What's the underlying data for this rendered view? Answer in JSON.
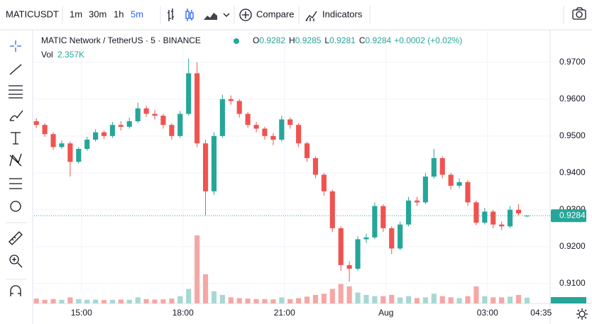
{
  "toolbar": {
    "symbol": "MATICUSDT",
    "intervals": [
      "1m",
      "30m",
      "1h",
      "5m"
    ],
    "compare": "Compare",
    "indicators": "Indicators"
  },
  "chart_data": {
    "type": "candlestick",
    "title": "MATIC Network / TetherUS · 5 · BINANCE",
    "ohlc_legend": [
      {
        "label": "O",
        "value": 0.9282
      },
      {
        "label": "H",
        "value": 0.9285
      },
      {
        "label": "L",
        "value": 0.9281
      },
      {
        "label": "C",
        "value": 0.9284
      }
    ],
    "change": "+0.0002 (+0.02%)",
    "volume_title": "Vol",
    "volume_value": "2.357K",
    "up_color": "#26a69a",
    "down_color": "#ef5350",
    "volume_up_color": "#a7d8d3",
    "volume_down_color": "#f5a7a5",
    "x": [
      820,
      835,
      850,
      865,
      880,
      895,
      910,
      925,
      940,
      955,
      970,
      985,
      1000,
      1015,
      1030,
      1045,
      1060,
      1075,
      1090,
      1105,
      1120,
      1135,
      1150,
      1165,
      1180,
      1195,
      1210,
      1225,
      1240,
      1255,
      1270,
      1285,
      1300,
      1315,
      1330,
      1345,
      1360,
      1375,
      1390,
      1405,
      1420,
      1435,
      1450,
      1465,
      1480,
      1495,
      1510,
      1525,
      1540,
      1555,
      1570,
      1585,
      1600,
      1615,
      1630,
      1645,
      1660,
      1675,
      1690
    ],
    "open": [
      0.954,
      0.953,
      0.9505,
      0.947,
      0.948,
      0.943,
      0.9465,
      0.949,
      0.951,
      0.95,
      0.953,
      0.9525,
      0.954,
      0.9575,
      0.956,
      0.9555,
      0.953,
      0.95,
      0.956,
      0.967,
      0.948,
      0.935,
      0.95,
      0.96,
      0.9595,
      0.956,
      0.953,
      0.952,
      0.95,
      0.949,
      0.9545,
      0.953,
      0.948,
      0.944,
      0.9395,
      0.935,
      0.925,
      0.915,
      0.914,
      0.922,
      0.9225,
      0.931,
      0.925,
      0.9195,
      0.926,
      0.9325,
      0.932,
      0.939,
      0.944,
      0.9395,
      0.9365,
      0.9375,
      0.932,
      0.9265,
      0.9295,
      0.926,
      0.9255,
      0.93,
      0.9282
    ],
    "high": [
      0.9548,
      0.9535,
      0.951,
      0.9488,
      0.9485,
      0.947,
      0.9498,
      0.9518,
      0.9515,
      0.9538,
      0.954,
      0.955,
      0.959,
      0.9582,
      0.957,
      0.956,
      0.9535,
      0.9568,
      0.971,
      0.97,
      0.949,
      0.951,
      0.9612,
      0.961,
      0.96,
      0.9565,
      0.9538,
      0.9525,
      0.9508,
      0.9555,
      0.955,
      0.9535,
      0.9485,
      0.9445,
      0.94,
      0.9355,
      0.9255,
      0.916,
      0.9228,
      0.9235,
      0.932,
      0.9315,
      0.9255,
      0.9268,
      0.9335,
      0.9335,
      0.94,
      0.9465,
      0.9445,
      0.94,
      0.9385,
      0.938,
      0.9325,
      0.9305,
      0.93,
      0.9268,
      0.931,
      0.9315,
      0.9285
    ],
    "low": [
      0.9522,
      0.9498,
      0.9462,
      0.9465,
      0.939,
      0.9425,
      0.946,
      0.9485,
      0.9492,
      0.9495,
      0.9515,
      0.952,
      0.9535,
      0.9552,
      0.9545,
      0.952,
      0.949,
      0.9495,
      0.9555,
      0.947,
      0.9285,
      0.934,
      0.9495,
      0.9585,
      0.955,
      0.9522,
      0.951,
      0.949,
      0.9475,
      0.9485,
      0.952,
      0.947,
      0.943,
      0.9385,
      0.9338,
      0.924,
      0.9135,
      0.9105,
      0.9135,
      0.921,
      0.922,
      0.924,
      0.918,
      0.919,
      0.9255,
      0.931,
      0.9315,
      0.9385,
      0.9385,
      0.9355,
      0.9358,
      0.931,
      0.9258,
      0.926,
      0.925,
      0.9245,
      0.925,
      0.9285,
      0.9281
    ],
    "close": [
      0.953,
      0.9505,
      0.947,
      0.948,
      0.943,
      0.9465,
      0.949,
      0.951,
      0.95,
      0.953,
      0.9525,
      0.954,
      0.9575,
      0.956,
      0.9555,
      0.953,
      0.95,
      0.956,
      0.967,
      0.948,
      0.935,
      0.95,
      0.96,
      0.9595,
      0.956,
      0.953,
      0.952,
      0.95,
      0.949,
      0.9545,
      0.953,
      0.948,
      0.944,
      0.9395,
      0.935,
      0.925,
      0.915,
      0.914,
      0.922,
      0.9225,
      0.931,
      0.925,
      0.9195,
      0.926,
      0.9325,
      0.932,
      0.939,
      0.944,
      0.9395,
      0.9365,
      0.9375,
      0.932,
      0.9265,
      0.9295,
      0.926,
      0.9255,
      0.93,
      0.929,
      0.9284
    ],
    "volume": [
      2000,
      1500,
      1800,
      1500,
      2500,
      1800,
      1500,
      1600,
      1400,
      1500,
      1600,
      1500,
      2500,
      1800,
      1600,
      1700,
      2000,
      3000,
      6000,
      28000,
      12000,
      5000,
      3500,
      2500,
      2200,
      2000,
      1800,
      1800,
      1700,
      2500,
      1800,
      2200,
      2800,
      3500,
      4000,
      6000,
      8000,
      7000,
      4500,
      3500,
      3000,
      3000,
      3500,
      2500,
      3000,
      2200,
      2500,
      4000,
      3000,
      2500,
      2200,
      3000,
      7000,
      3000,
      2500,
      2500,
      2800,
      3500,
      2357
    ],
    "xlim": [
      816,
      1731
    ],
    "xticks": [
      {
        "value": 900,
        "label": "15:00"
      },
      {
        "value": 1080,
        "label": "18:00"
      },
      {
        "value": 1260,
        "label": "21:00"
      },
      {
        "value": 1440,
        "label": "Aug"
      },
      {
        "value": 1620,
        "label": "03:00"
      },
      {
        "value": 1715,
        "label": "04:35"
      }
    ],
    "ylim": [
      0.9046,
      0.9788
    ],
    "yticks": [
      {
        "value": 0.97,
        "label": "0.9700"
      },
      {
        "value": 0.96,
        "label": "0.9600"
      },
      {
        "value": 0.95,
        "label": "0.9500"
      },
      {
        "value": 0.94,
        "label": "0.9400"
      },
      {
        "value": 0.93,
        "label": "0.9300"
      },
      {
        "value": 0.92,
        "label": "0.9200"
      },
      {
        "value": 0.91,
        "label": "0.9100"
      }
    ],
    "grid": true
  }
}
